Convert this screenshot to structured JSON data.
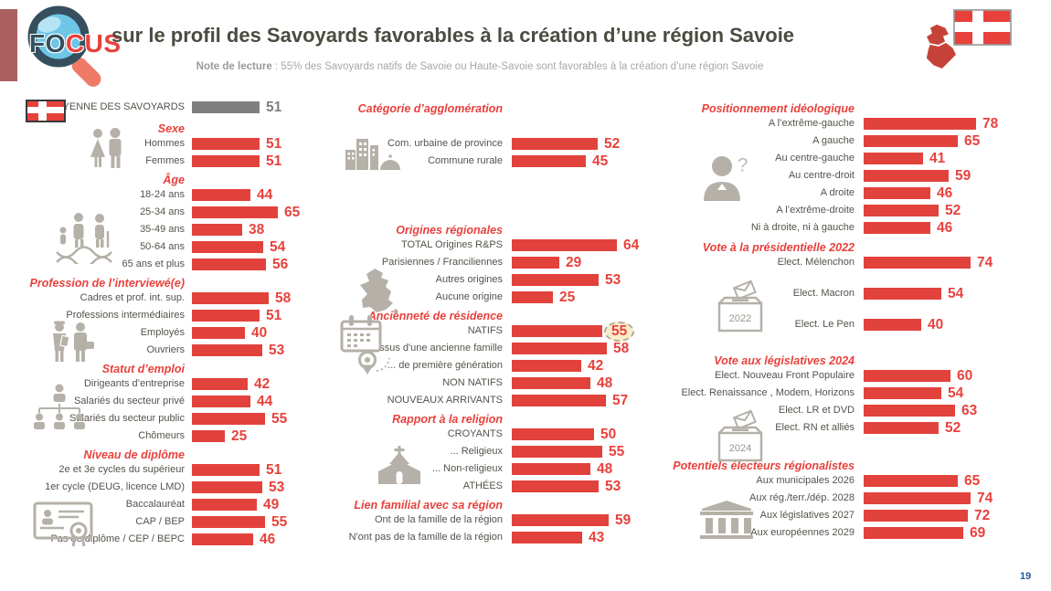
{
  "header": {
    "logo_text_fo": "FO",
    "logo_text_cus": "CUS",
    "title": "sur le profil des Savoyards favorables à la création d’une région Savoie",
    "note_label": "Note de lecture",
    "note_text": " : 55% des Savoyards natifs de Savoie ou Haute-Savoie sont favorables à la création d’une région Savoie"
  },
  "footer": {
    "page_number": "19"
  },
  "colors": {
    "bar_red": "#e2423c",
    "value_red": "#e8413c",
    "header_red": "#e8413c",
    "average_gray": "#7f7f7f",
    "label_gray": "#55524b",
    "icon_gray": "#b5b1a8",
    "accent_maroon": "#ab5f5f",
    "highlight_bg": "#f9edcb",
    "flag_red": "#e8413c",
    "page_number_blue": "#2456a4"
  },
  "icons": {
    "logo": "magnifier-icon",
    "average": "savoie-flag-icon",
    "top_right": [
      "savoie-map-icon",
      "savoie-flag-icon"
    ],
    "ballot_2022_year": "2022",
    "ballot_2024_year": "2024"
  },
  "chart_data": {
    "type": "bar",
    "orientation": "horizontal",
    "unit": "% favorables",
    "xlim": [
      0,
      100
    ],
    "average_rows": [
      {
        "label": "MOYENNE DES SAVOYARDS",
        "value": 51,
        "color": "gray"
      }
    ],
    "columns": [
      {
        "name": "socio-demographie",
        "sections": [
          {
            "title": "Sexe",
            "icon": "male-female-icon",
            "rows": [
              {
                "label": "Hommes",
                "value": 51
              },
              {
                "label": "Femmes",
                "value": 51
              }
            ]
          },
          {
            "title": "Âge",
            "icon": "generations-dna-icon",
            "rows": [
              {
                "label": "18-24 ans",
                "value": 44
              },
              {
                "label": "25-34 ans",
                "value": 65
              },
              {
                "label": "35-49 ans",
                "value": 38
              },
              {
                "label": "50-64 ans",
                "value": 54
              },
              {
                "label": "65 ans et plus",
                "value": 56
              }
            ]
          },
          {
            "title": "Profession de l’interviewé(e)",
            "icon": "workers-icon",
            "rows": [
              {
                "label": "Cadres et prof. int. sup.",
                "value": 58
              },
              {
                "label": "Professions intermédiaires",
                "value": 51
              },
              {
                "label": "Employés",
                "value": 40
              },
              {
                "label": "Ouvriers",
                "value": 53
              }
            ]
          },
          {
            "title": "Statut d’emploi",
            "icon": "org-chart-icon",
            "rows": [
              {
                "label": "Dirigeants d’entreprise",
                "value": 42
              },
              {
                "label": "Salariés du secteur privé",
                "value": 44
              },
              {
                "label": "Salariés du secteur public",
                "value": 55
              },
              {
                "label": "Chômeurs",
                "value": 25
              }
            ]
          },
          {
            "title": "Niveau de diplôme",
            "icon": "diploma-icon",
            "rows": [
              {
                "label": "2e et 3e cycles du supérieur",
                "value": 51
              },
              {
                "label": "1er cycle (DEUG, licence LMD)",
                "value": 53
              },
              {
                "label": "Baccalauréat",
                "value": 49
              },
              {
                "label": "CAP / BEP",
                "value": 55
              },
              {
                "label": "Pas de diplôme / CEP / BEPC",
                "value": 46
              }
            ]
          }
        ]
      },
      {
        "name": "territoire-origines",
        "sections": [
          {
            "title": "Catégorie d’agglomération",
            "icon": "city-icon",
            "rows": [
              {
                "label": "Com. urbaine de province",
                "value": 52
              },
              {
                "label": "Commune rurale",
                "value": 45
              }
            ]
          },
          {
            "title": "Origines régionales",
            "icon": "france-map-icon",
            "rows": [
              {
                "label": "TOTAL Origines R&PS",
                "value": 64
              },
              {
                "label": "Parisiennes / Franciliennes",
                "value": 29
              },
              {
                "label": "Autres origines",
                "value": 53
              },
              {
                "label": "Aucune origine",
                "value": 25
              }
            ]
          },
          {
            "title": "Ancienneté de résidence",
            "icon": "calendar-pin-icon",
            "rows": [
              {
                "label": "NATIFS",
                "value": 55,
                "highlight": true
              },
              {
                "label": "... issus d'une ancienne famille",
                "value": 58
              },
              {
                "label": "... de première génération",
                "value": 42
              },
              {
                "label": "NON NATIFS",
                "value": 48
              },
              {
                "label": "NOUVEAUX ARRIVANTS",
                "value": 57
              }
            ]
          },
          {
            "title": "Rapport à la religion",
            "icon": "church-icon",
            "rows": [
              {
                "label": "CROYANTS",
                "value": 50
              },
              {
                "label": "... Religieux",
                "value": 55
              },
              {
                "label": "... Non-religieux",
                "value": 48
              },
              {
                "label": "ATHÉES",
                "value": 53
              }
            ]
          },
          {
            "title": "Lien familial avec sa région",
            "icon": null,
            "rows": [
              {
                "label": "Ont de la famille de la région",
                "value": 59
              },
              {
                "label": "N'ont pas de la famille de la région",
                "value": 43
              }
            ]
          }
        ]
      },
      {
        "name": "politique",
        "sections": [
          {
            "title": "Positionnement idéologique",
            "icon": "person-question-icon",
            "rows": [
              {
                "label": "A l’extrême-gauche",
                "value": 78
              },
              {
                "label": "A gauche",
                "value": 65
              },
              {
                "label": "Au centre-gauche",
                "value": 41
              },
              {
                "label": "Au centre-droit",
                "value": 59
              },
              {
                "label": "A droite",
                "value": 46
              },
              {
                "label": "A l’extrême-droite",
                "value": 52
              },
              {
                "label": "Ni à droite, ni à gauche",
                "value": 46
              }
            ]
          },
          {
            "title": "Vote à la présidentielle 2022",
            "icon": "ballot-box-2022-icon",
            "rows": [
              {
                "label": "Elect. Mélenchon",
                "value": 74
              },
              {
                "label": "Elect. Macron",
                "value": 54
              },
              {
                "label": "Elect. Le Pen",
                "value": 40
              }
            ]
          },
          {
            "title": "Vote aux législatives 2024",
            "icon": "ballot-box-2024-icon",
            "rows": [
              {
                "label": "Elect. Nouveau Front Populaire",
                "value": 60
              },
              {
                "label": "Elect. Renaissance , Modem, Horizons",
                "value": 54
              },
              {
                "label": "Elect. LR et DVD",
                "value": 63
              },
              {
                "label": "Elect. RN et alliés",
                "value": 52
              }
            ]
          },
          {
            "title": "Potentiels électeurs régionalistes",
            "icon": "government-building-icon",
            "rows": [
              {
                "label": "Aux municipales 2026",
                "value": 65
              },
              {
                "label": "Aux rég./terr./dép. 2028",
                "value": 74
              },
              {
                "label": "Aux législatives 2027",
                "value": 72
              },
              {
                "label": "Aux européennes 2029",
                "value": 69
              }
            ]
          }
        ]
      }
    ]
  }
}
